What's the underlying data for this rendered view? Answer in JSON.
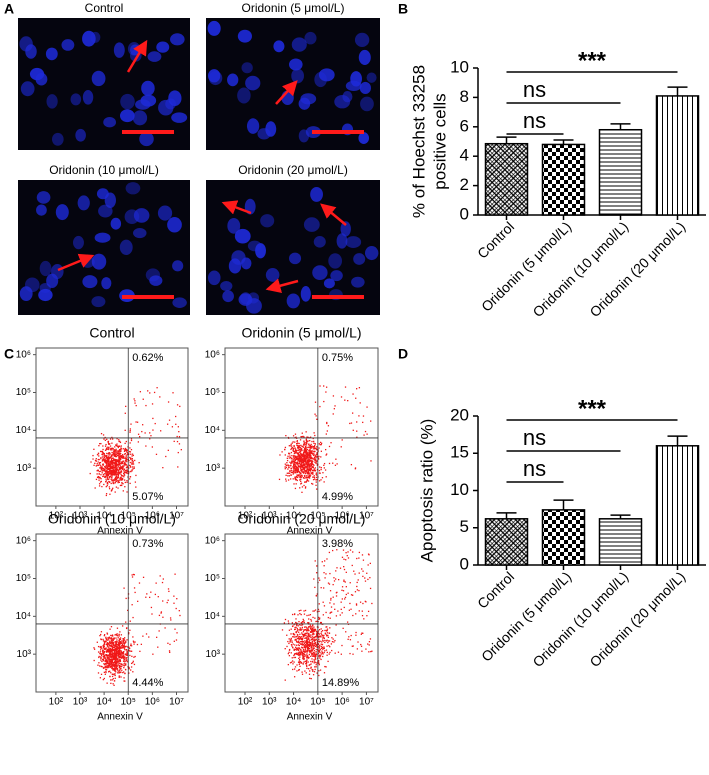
{
  "figure": {
    "panel_labels": [
      "A",
      "B",
      "C",
      "D"
    ],
    "microscopy_titles": [
      "Control",
      "Oridonin (5 μmol/L)",
      "Oridonin (10 μmol/L)",
      "Oridonin (20 μmol/L)"
    ],
    "flow": {
      "xlabel": "Annexin V",
      "log_scale": true,
      "xlim": [
        15,
        30000000
      ],
      "ylim": [
        100,
        1500000
      ],
      "xticks": [
        {
          "value": 100,
          "label": "10²"
        },
        {
          "value": 1000,
          "label": "10³"
        },
        {
          "value": 10000,
          "label": "10⁴"
        },
        {
          "value": 100000,
          "label": "10⁵"
        },
        {
          "value": 1000000,
          "label": "10⁶"
        },
        {
          "value": 10000000,
          "label": "10⁷"
        }
      ],
      "yticks": [
        {
          "value": 1000,
          "label": "10³"
        },
        {
          "value": 10000,
          "label": "10⁴"
        },
        {
          "value": 100000,
          "label": "10⁵"
        },
        {
          "value": 1000000,
          "label": "10⁶"
        }
      ],
      "quadrant_x": 100000,
      "quadrant_y": 6300,
      "plots": [
        {
          "title": "Control",
          "upper_right": "0.62%",
          "lower_right": "5.07%"
        },
        {
          "title": "Oridonin (5 μmol/L)",
          "upper_right": "0.75%",
          "lower_right": "4.99%"
        },
        {
          "title": "Oridonin (10 μmol/L)",
          "upper_right": "0.73%",
          "lower_right": "4.44%"
        },
        {
          "title": "Oridonin (20 μmol/L)",
          "upper_right": "3.98%",
          "lower_right": "14.89%"
        }
      ]
    }
  },
  "chart_data": [
    {
      "type": "bar",
      "ylabel": [
        "% of Hoechst  33258",
        "positive cells"
      ],
      "categories": [
        "Control",
        "Oridonin (5 μmol/L)",
        "Oridonin (10 μmol/L)",
        "Oridonin (20 μmol/L)"
      ],
      "values": [
        4.85,
        4.8,
        5.8,
        8.1
      ],
      "errors": [
        0.45,
        0.3,
        0.4,
        0.6
      ],
      "patterns": [
        "crosshatch",
        "checker",
        "hlines",
        "vlines"
      ],
      "ylim": [
        0,
        10
      ],
      "yticks": [
        0,
        2,
        4,
        6,
        8,
        10
      ],
      "comparisons": [
        {
          "label": "***",
          "from": 0,
          "to": 3
        },
        {
          "label": "ns",
          "from": 0,
          "to": 2
        },
        {
          "label": "ns",
          "from": 0,
          "to": 1
        }
      ]
    },
    {
      "type": "bar",
      "ylabel": [
        "Apoptosis ratio (%)"
      ],
      "categories": [
        "Control",
        "Oridonin (5 μmol/L)",
        "Oridonin (10 μmol/L)",
        "Oridonin (20 μmol/L)"
      ],
      "values": [
        6.2,
        7.4,
        6.2,
        16.0
      ],
      "errors": [
        0.8,
        1.3,
        0.5,
        1.3
      ],
      "patterns": [
        "crosshatch",
        "checker",
        "hlines",
        "vlines"
      ],
      "ylim": [
        0,
        20
      ],
      "yticks": [
        0,
        5,
        10,
        15,
        20
      ],
      "comparisons": [
        {
          "label": "***",
          "from": 0,
          "to": 3
        },
        {
          "label": "ns",
          "from": 0,
          "to": 2
        },
        {
          "label": "ns",
          "from": 0,
          "to": 1
        }
      ]
    }
  ]
}
